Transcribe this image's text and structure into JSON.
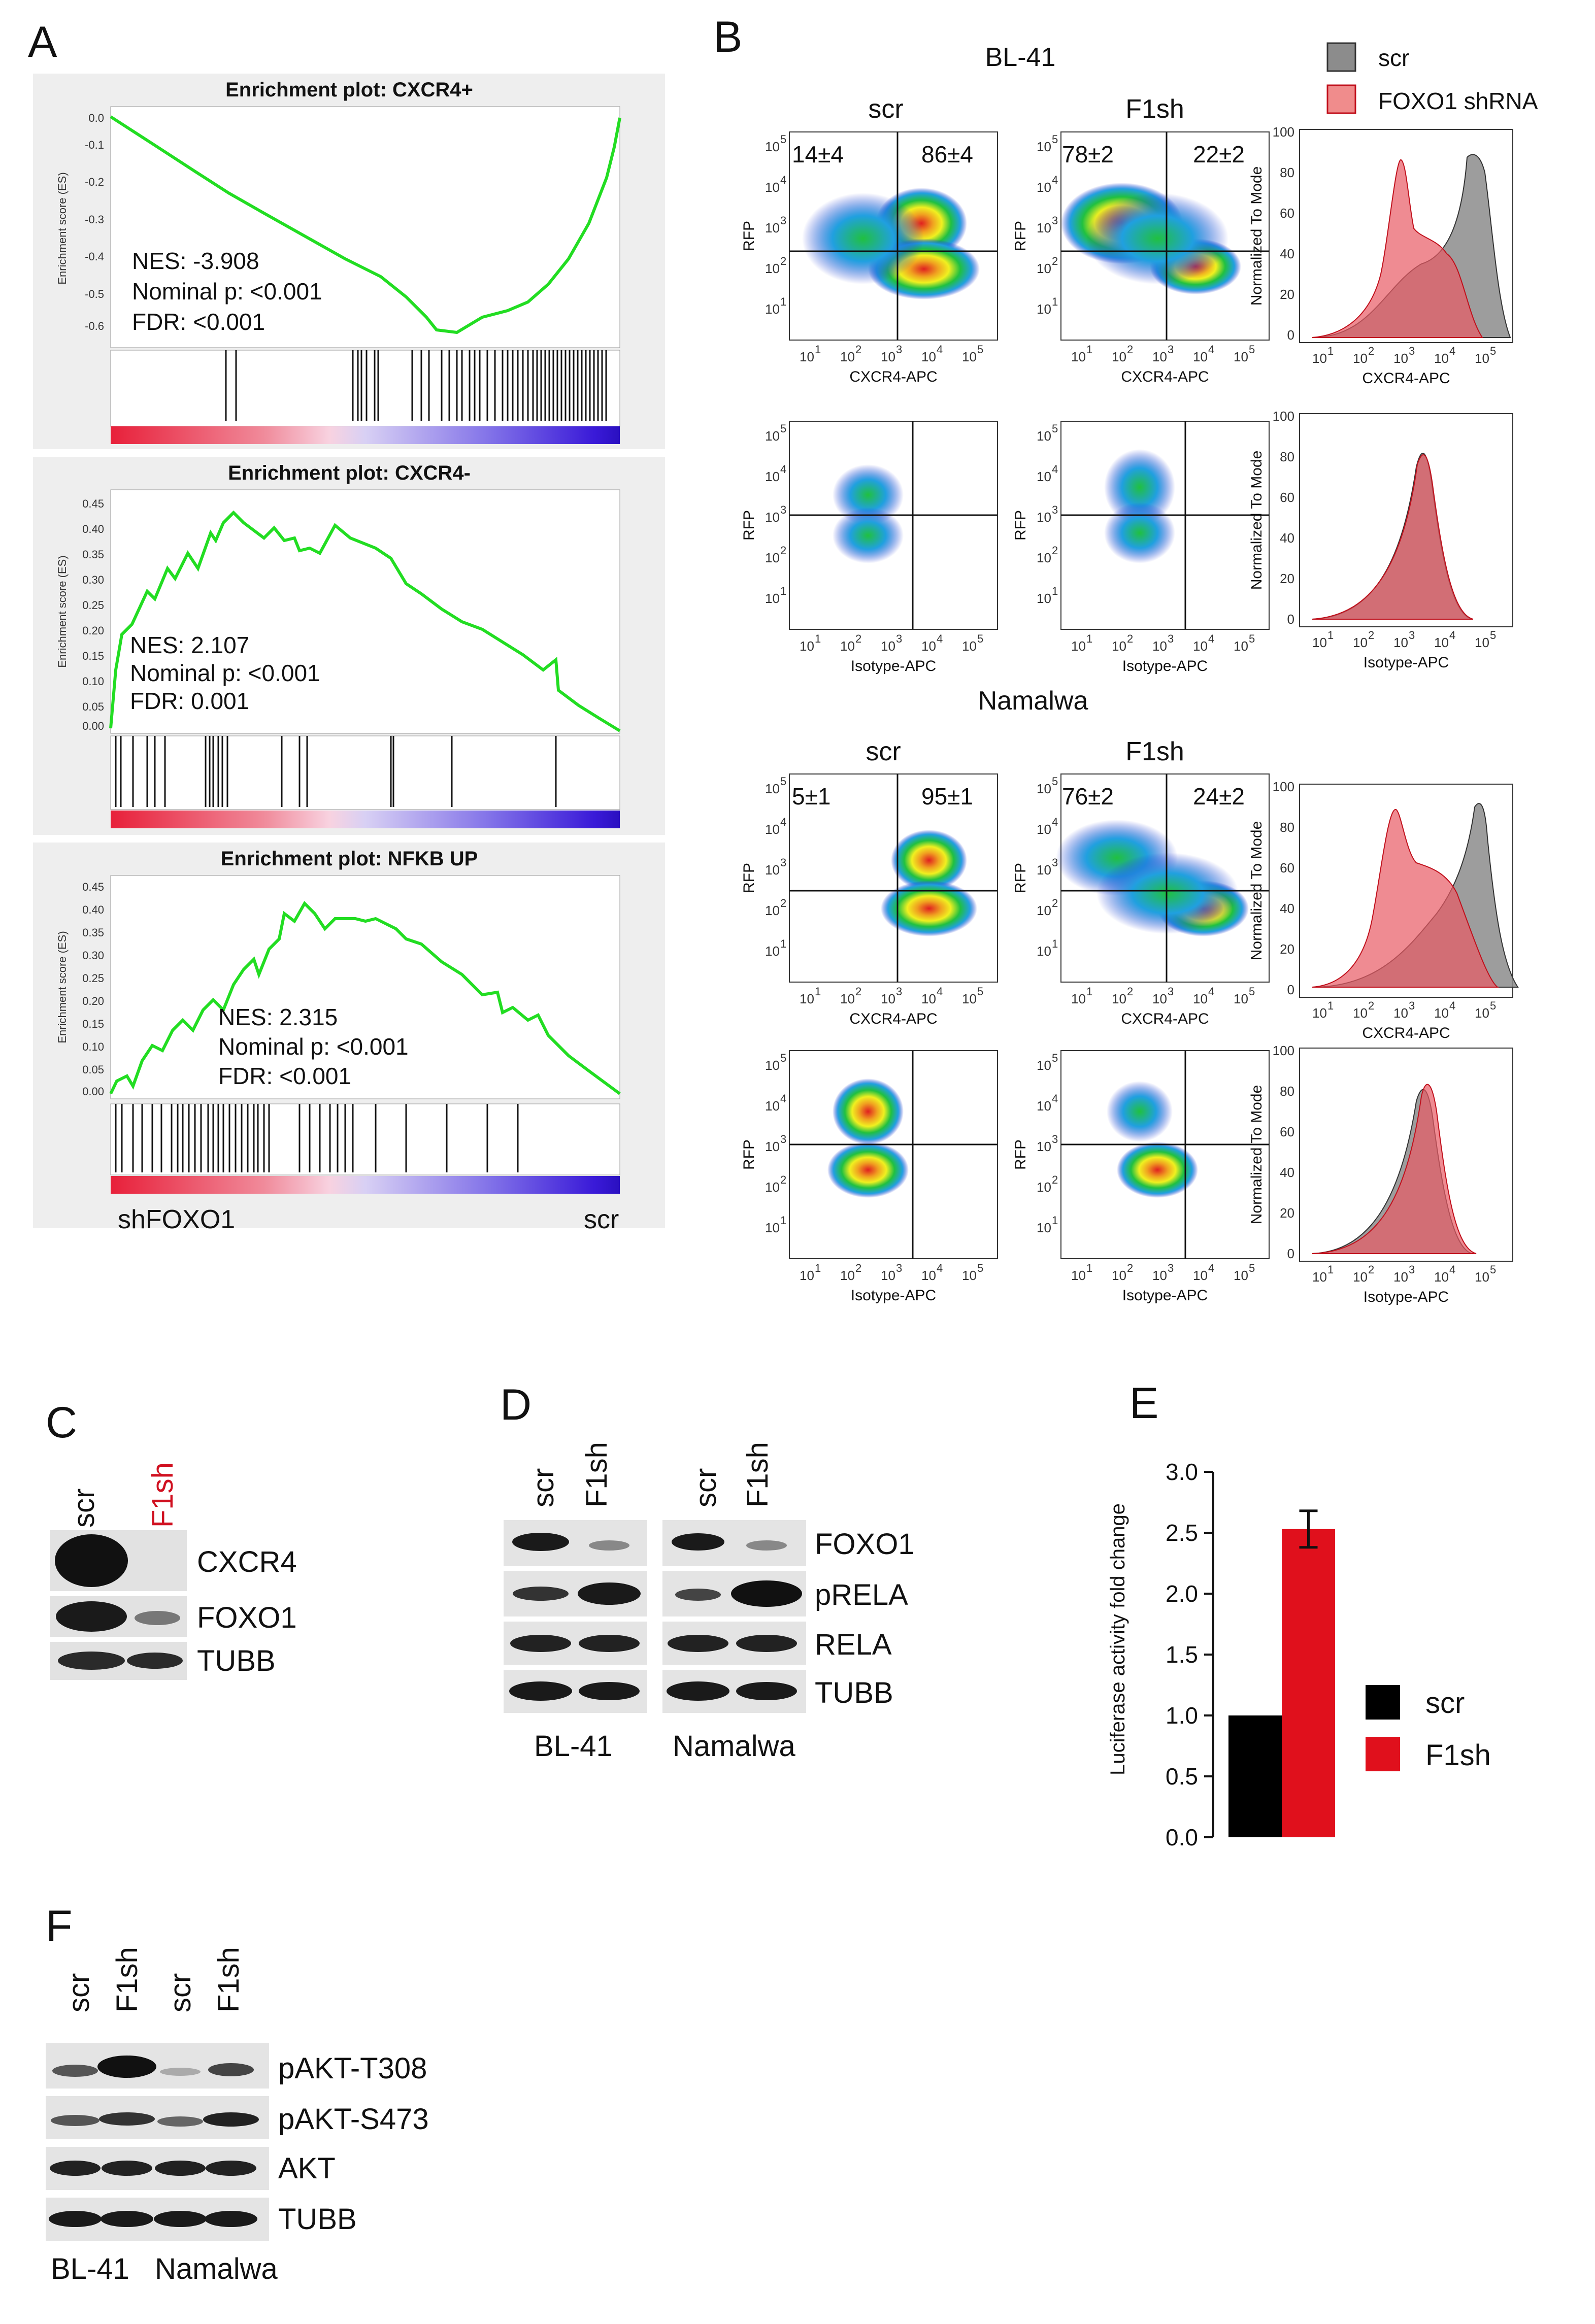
{
  "panels": [
    "A",
    "B",
    "C",
    "D",
    "E",
    "F"
  ],
  "gsea": [
    {
      "title": "Enrichment plot: CXCR4+",
      "ylabel": "Enrichment score (ES)",
      "yticks": [
        "0.0",
        "-0.1",
        "-0.2",
        "-0.3",
        "-0.4",
        "-0.5",
        "-0.6"
      ],
      "nes": "NES: -3.908",
      "p": "Nominal p: <0.001",
      "fdr": "FDR: <0.001"
    },
    {
      "title": "Enrichment plot: CXCR4-",
      "ylabel": "Enrichment score (ES)",
      "yticks": [
        "0.45",
        "0.40",
        "0.35",
        "0.30",
        "0.25",
        "0.20",
        "0.15",
        "0.10",
        "0.05",
        "0.00"
      ],
      "nes": "NES: 2.107",
      "p": "Nominal p: <0.001",
      "fdr": "FDR: 0.001"
    },
    {
      "title": "Enrichment plot: NFKB UP",
      "ylabel": "Enrichment score (ES)",
      "yticks": [
        "0.45",
        "0.40",
        "0.35",
        "0.30",
        "0.25",
        "0.20",
        "0.15",
        "0.10",
        "0.05",
        "0.00"
      ],
      "nes": "NES: 2.315",
      "p": "Nominal p: <0.001",
      "fdr": "FDR: <0.001"
    }
  ],
  "gsea_xlabels": {
    "left": "shFOXO1",
    "right": "scr"
  },
  "flow": {
    "cell_lines": [
      "BL-41",
      "Namalwa"
    ],
    "conditions": [
      "scr",
      "F1sh"
    ],
    "legend": [
      "scr",
      "FOXO1 shRNA"
    ],
    "ylabel_dot": "RFP",
    "ylabel_hist": "Normalized To Mode",
    "xlabel_cxcr4": "CXCR4-APC",
    "xlabel_iso": "Isotype-APC",
    "log_ticks": [
      "10",
      "1",
      "10",
      "2",
      "10",
      "3",
      "10",
      "4",
      "10",
      "5"
    ],
    "hist_yticks": [
      "100",
      "80",
      "60",
      "40",
      "20",
      "0"
    ],
    "quadrants": {
      "BL-41": {
        "scr": [
          "14±4",
          "86±4"
        ],
        "F1sh": [
          "78±2",
          "22±2"
        ]
      },
      "Namalwa": {
        "scr": [
          "5±1",
          "95±1"
        ],
        "F1sh": [
          "76±2",
          "24±2"
        ]
      }
    }
  },
  "blot_c": {
    "lanes": [
      "scr",
      "F1sh"
    ],
    "bands": [
      "CXCR4",
      "FOXO1",
      "TUBB"
    ]
  },
  "blot_d": {
    "lanes": [
      "scr",
      "F1sh",
      "scr",
      "F1sh"
    ],
    "bands": [
      "FOXO1",
      "pRELA",
      "RELA",
      "TUBB"
    ],
    "groups": [
      "BL-41",
      "Namalwa"
    ]
  },
  "blot_f": {
    "lanes": [
      "scr",
      "F1sh",
      "scr",
      "F1sh"
    ],
    "bands": [
      "pAKT-T308",
      "pAKT-S473",
      "AKT",
      "TUBB"
    ],
    "groups": [
      "BL-41",
      "Namalwa"
    ]
  },
  "chart_data": {
    "type": "bar",
    "categories": [
      "scr",
      "F1sh"
    ],
    "values": [
      1.0,
      2.53
    ],
    "errors": [
      0,
      0.15
    ],
    "colors": [
      "#000000",
      "#e0101c"
    ],
    "ylabel": "Luciferase activity fold change",
    "ylim": [
      0,
      3.0
    ],
    "yticks": [
      "0.0",
      "0.5",
      "1.0",
      "1.5",
      "2.0",
      "2.5",
      "3.0"
    ],
    "legend": [
      "scr",
      "F1sh"
    ]
  }
}
